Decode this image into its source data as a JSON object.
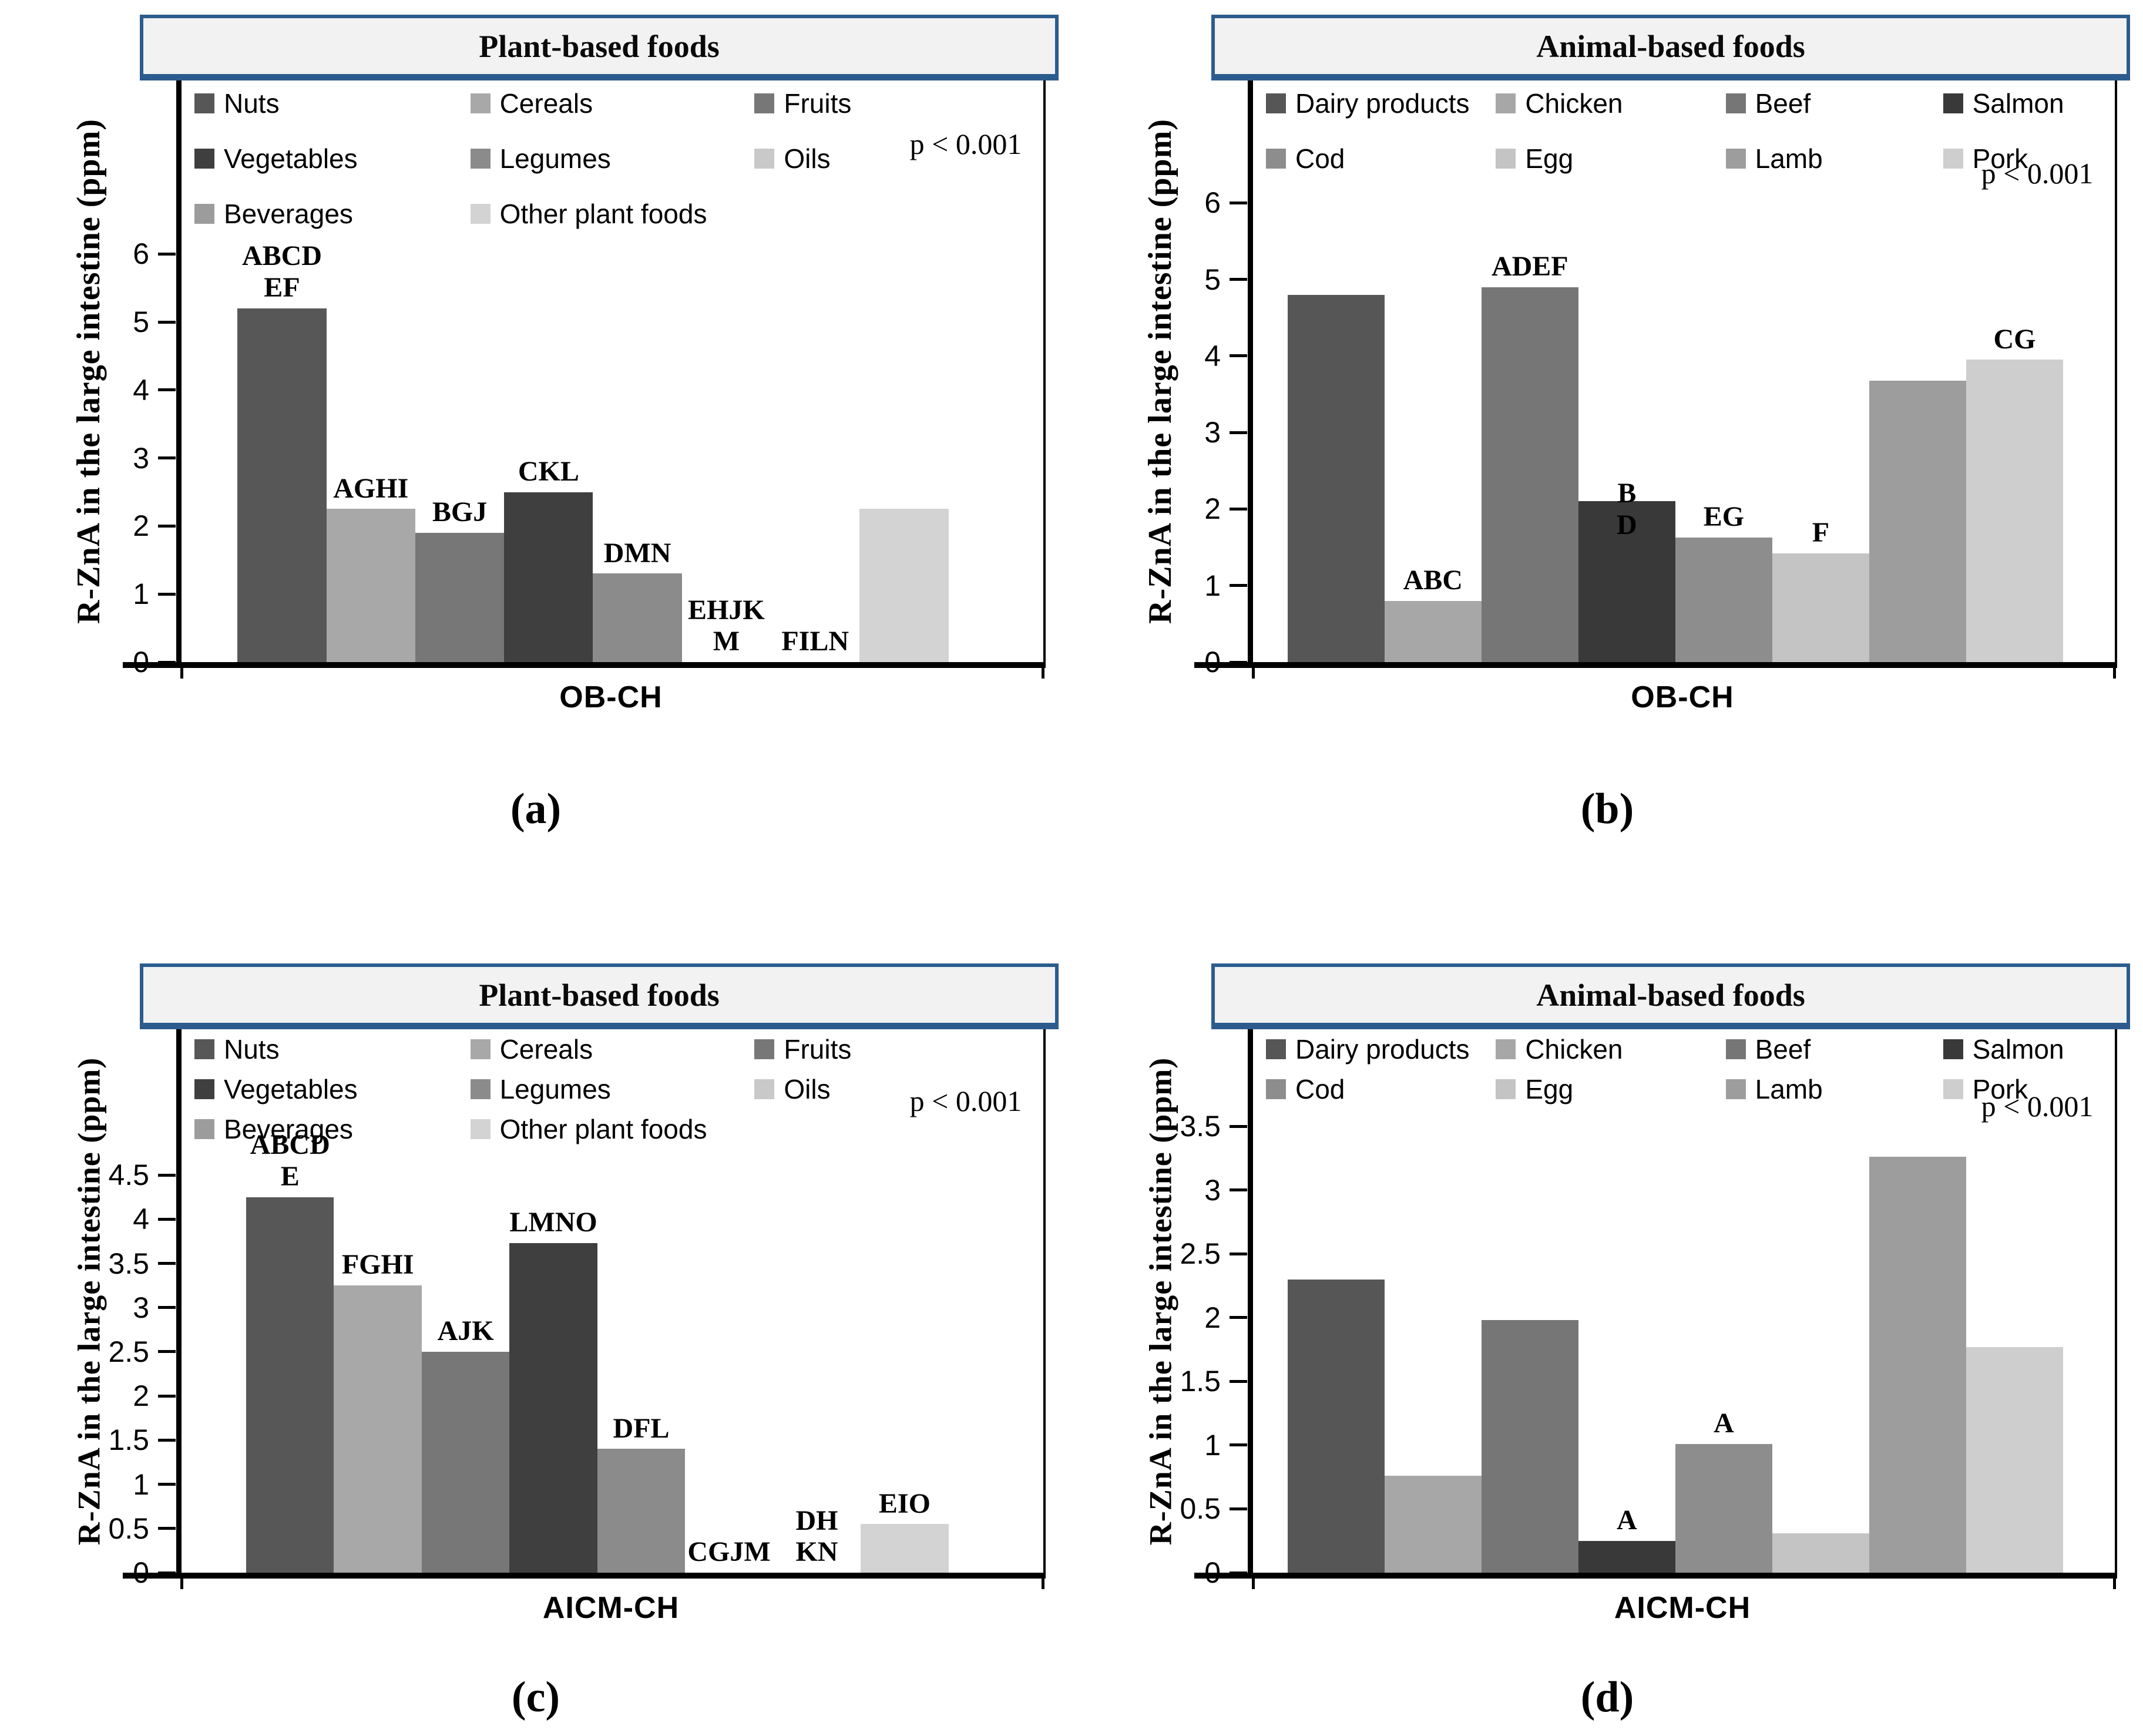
{
  "figure": {
    "background": "#ffffff"
  },
  "panels": [
    {
      "caption": "(a)"
    },
    {
      "caption": "(b)"
    },
    {
      "caption": "(c)"
    },
    {
      "caption": "(d)"
    }
  ],
  "chart_data": [
    {
      "type": "bar",
      "panel": "a",
      "title": "Plant-based foods",
      "xlabel": "OB-CH",
      "ylabel": "R-ZnA in the large intestine (ppm)",
      "annotation": "p < 0.001",
      "ylim": [
        0,
        6
      ],
      "ytick_step": 1,
      "grid": false,
      "legend_position": "top-inside",
      "categories": [
        "Nuts",
        "Cereals",
        "Fruits",
        "Vegetables",
        "Legumes",
        "Oils",
        "Beverages",
        "Other plant foods"
      ],
      "values": [
        5.2,
        2.25,
        1.9,
        2.5,
        1.3,
        0,
        0,
        2.25
      ],
      "bar_labels": [
        "ABCD\nEF",
        "AGHI",
        "BGJ",
        "CKL",
        "DMN",
        "EHJK\nM",
        "FILN",
        ""
      ],
      "colors": [
        "#575757",
        "#a8a8a8",
        "#777777",
        "#3f3f3f",
        "#8b8b8b",
        "#c9c9c9",
        "#9c9c9c",
        "#d3d3d3"
      ],
      "title_box": {
        "fill": "#f2f2f2",
        "border": "#2b5c8d"
      }
    },
    {
      "type": "bar",
      "panel": "b",
      "title": "Animal-based foods",
      "xlabel": "OB-CH",
      "ylabel": "R-ZnA in the large intestine (ppm)",
      "annotation": "p < 0.001",
      "ylim": [
        0,
        6
      ],
      "ytick_step": 1,
      "grid": false,
      "legend_position": "top-inside",
      "categories": [
        "Dairy products",
        "Chicken",
        "Beef",
        "Salmon",
        "Cod",
        "Egg",
        "Lamb",
        "Pork"
      ],
      "values": [
        4.8,
        0.8,
        4.9,
        2.1,
        1.63,
        1.42,
        3.68,
        3.95
      ],
      "bar_labels": [
        "",
        "ABC",
        "ADEF",
        "B\nD",
        "EG",
        "F",
        "",
        "CG"
      ],
      "colors": [
        "#565656",
        "#a7a7a7",
        "#767676",
        "#393939",
        "#8d8d8d",
        "#c4c4c4",
        "#9d9d9d",
        "#cecece"
      ],
      "title_box": {
        "fill": "#f2f2f2",
        "border": "#2b5c8d"
      }
    },
    {
      "type": "bar",
      "panel": "c",
      "title": "Plant-based foods",
      "xlabel": "AICM-CH",
      "ylabel": "R-ZnA in the large intestine (ppm)",
      "annotation": "p < 0.001",
      "ylim": [
        0,
        4.5
      ],
      "ytick_step": 0.5,
      "grid": false,
      "legend_position": "top-inside",
      "categories": [
        "Nuts",
        "Cereals",
        "Fruits",
        "Vegetables",
        "Legumes",
        "Oils",
        "Beverages",
        "Other plant foods"
      ],
      "values": [
        4.25,
        3.25,
        2.5,
        3.73,
        1.4,
        0,
        0,
        0.55
      ],
      "bar_labels": [
        "ABCD\nE",
        "FGHI",
        "AJK",
        "LMNO",
        "DFL",
        "CGJM",
        "DH\nKN",
        "EIO"
      ],
      "colors": [
        "#575757",
        "#a8a8a8",
        "#777777",
        "#3f3f3f",
        "#8b8b8b",
        "#c9c9c9",
        "#9c9c9c",
        "#d3d3d3"
      ],
      "title_box": {
        "fill": "#f2f2f2",
        "border": "#2b5c8d"
      }
    },
    {
      "type": "bar",
      "panel": "d",
      "title": "Animal-based foods",
      "xlabel": "AICM-CH",
      "ylabel": "R-ZnA in the large intestine (ppm)",
      "annotation": "p < 0.001",
      "ylim": [
        0,
        3.5
      ],
      "ytick_step": 0.5,
      "grid": false,
      "legend_position": "top-inside",
      "categories": [
        "Dairy products",
        "Chicken",
        "Beef",
        "Salmon",
        "Cod",
        "Egg",
        "Lamb",
        "Pork"
      ],
      "values": [
        2.3,
        0.76,
        1.98,
        0.25,
        1.01,
        0.31,
        3.26,
        1.77
      ],
      "bar_labels": [
        "",
        "",
        "",
        "A",
        "A",
        "",
        "",
        ""
      ],
      "colors": [
        "#565656",
        "#a7a7a7",
        "#767676",
        "#393939",
        "#8d8d8d",
        "#c4c4c4",
        "#9d9d9d",
        "#cecece"
      ],
      "title_box": {
        "fill": "#f2f2f2",
        "border": "#2b5c8d"
      }
    }
  ]
}
